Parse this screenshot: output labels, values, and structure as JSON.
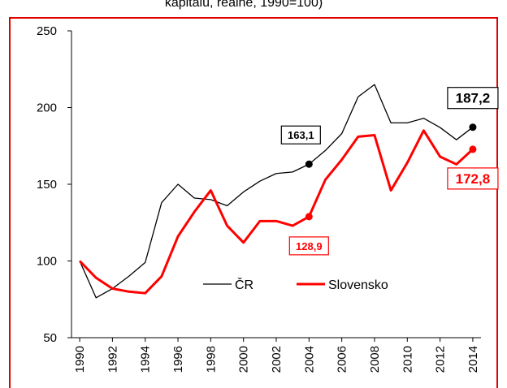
{
  "chart_data": {
    "type": "line",
    "title": "kapitálu, reálně, 1990=100)",
    "x": [
      1990,
      1991,
      1992,
      1993,
      1994,
      1995,
      1996,
      1997,
      1998,
      1999,
      2000,
      2001,
      2002,
      2003,
      2004,
      2005,
      2006,
      2007,
      2008,
      2009,
      2010,
      2011,
      2012,
      2013,
      2014
    ],
    "series": [
      {
        "name": "ČR",
        "color": "#000000",
        "values": [
          100,
          76,
          82,
          90,
          99,
          138,
          150,
          141,
          140,
          136,
          145,
          152,
          157,
          158,
          163.1,
          172,
          183,
          207,
          215,
          190,
          190,
          193,
          187,
          179,
          187.2
        ],
        "value_labels": [
          null,
          null,
          null,
          null,
          null,
          null,
          null,
          null,
          null,
          null,
          null,
          null,
          null,
          null,
          "163,1",
          null,
          null,
          null,
          null,
          null,
          null,
          null,
          null,
          null,
          "187,2"
        ]
      },
      {
        "name": "Slovensko",
        "color": "#ff0000",
        "values": [
          100,
          89,
          82,
          80,
          79,
          90,
          116,
          132,
          146,
          123,
          112,
          126,
          126,
          123,
          128.9,
          153,
          166,
          181,
          182,
          146,
          164,
          185,
          168,
          163,
          172.8
        ],
        "value_labels": [
          null,
          null,
          null,
          null,
          null,
          null,
          null,
          null,
          null,
          null,
          null,
          null,
          null,
          null,
          "128,9",
          null,
          null,
          null,
          null,
          null,
          null,
          null,
          null,
          null,
          "172,8"
        ]
      }
    ],
    "xlim": [
      1989.5,
      2014.5
    ],
    "xticks": [
      1990,
      1992,
      1994,
      1996,
      1998,
      2000,
      2002,
      2004,
      2006,
      2008,
      2010,
      2012,
      2014
    ],
    "ylim": [
      50,
      250
    ],
    "yticks": [
      50,
      100,
      150,
      200,
      250
    ],
    "grid": false,
    "legend": "lower center"
  }
}
